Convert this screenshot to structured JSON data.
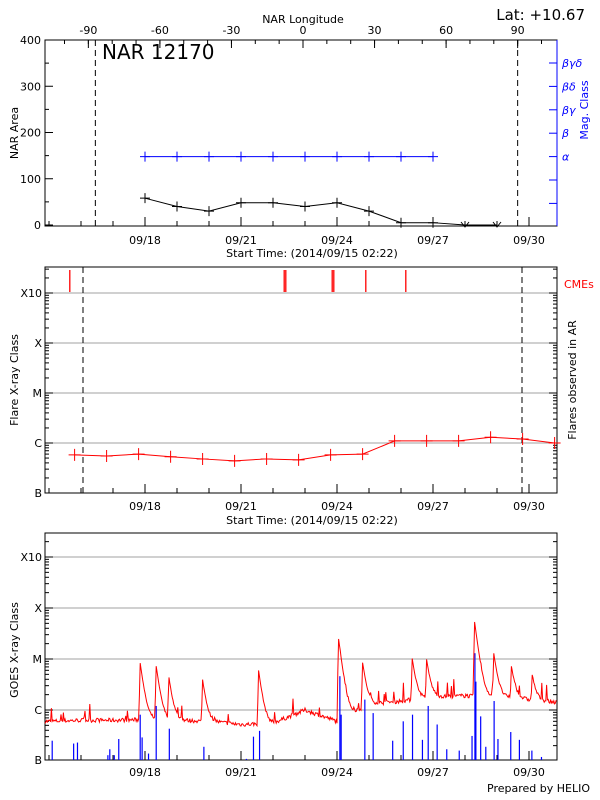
{
  "chart_data": [
    {
      "type": "line",
      "panel": "nar",
      "title": "NAR 12170",
      "top_axis_label": "NAR Longitude",
      "top_axis_ticks": [
        "-90",
        "-60",
        "-30",
        "0",
        "30",
        "60",
        "90"
      ],
      "latitude_label": "Lat: +10.67",
      "xlabel": "Start Time: (2014/09/15 02:22)",
      "x_tick_labels": [
        "09/18",
        "09/21",
        "09/24",
        "09/27",
        "09/30"
      ],
      "ylabel": "NAR Area",
      "y_ticks": [
        "0",
        "100",
        "200",
        "300",
        "400"
      ],
      "ylim": [
        0,
        400
      ],
      "y2label": "Mag. Class",
      "y2_categories": [
        "βγδ",
        "βδ",
        "βγ",
        "β",
        "α"
      ],
      "limb_longitudes": [
        -90,
        90
      ],
      "series": [
        {
          "color": "#000000",
          "days": [
            "09/18",
            "09/19",
            "09/20",
            "09/21",
            "09/22",
            "09/23",
            "09/24",
            "09/25",
            "09/26",
            "09/27",
            "09/28",
            "09/29"
          ],
          "values": [
            58,
            40,
            30,
            48,
            48,
            40,
            48,
            30,
            5,
            5,
            0,
            0
          ]
        },
        {
          "color": "#0000ff",
          "days": [
            "09/18",
            "09/19",
            "09/20",
            "09/21",
            "09/22",
            "09/23",
            "09/24",
            "09/25",
            "09/26",
            "09/27"
          ],
          "values": [
            "α",
            "α",
            "α",
            "α",
            "α",
            "α",
            "α",
            "α",
            "α",
            "α"
          ]
        }
      ]
    },
    {
      "type": "line",
      "panel": "flares",
      "xlabel": "Start Time: (2014/09/15 02:22)",
      "x_tick_labels": [
        "09/18",
        "09/21",
        "09/24",
        "09/27",
        "09/30"
      ],
      "ylabel": "Flare X-ray Class",
      "y2label": "Flares observed in AR",
      "y_ticks": [
        "B",
        "C",
        "M",
        "X",
        "X10"
      ],
      "grid": true,
      "cme_label": "CMEs",
      "cme_color": "#ff0000",
      "cme_times": [
        15.65,
        22.35,
        22.4,
        23.85,
        23.9,
        24.9,
        26.15
      ],
      "series": [
        {
          "color": "#ff0000",
          "t": [
            15.8,
            16.8,
            17.8,
            18.8,
            19.8,
            20.8,
            21.8,
            22.8,
            23.8,
            24.8,
            25.8,
            26.8,
            27.8,
            28.8,
            29.8,
            30.8
          ],
          "values": [
            "B5.8",
            "B5.5",
            "B6.0",
            "B5.3",
            "B4.8",
            "B4.4",
            "B4.8",
            "B4.6",
            "B5.8",
            "B6.0",
            "C1.1",
            "C1.1",
            "C1.1",
            "C1.3",
            "C1.2",
            "C1.0"
          ]
        }
      ]
    },
    {
      "type": "line",
      "panel": "goes",
      "x_tick_labels": [
        "09/18",
        "09/21",
        "09/24",
        "09/27",
        "09/30"
      ],
      "ylabel": "GOES X-ray Class",
      "y_ticks": [
        "B",
        "C",
        "M",
        "X",
        "X10"
      ],
      "grid": true,
      "series": [
        {
          "color": "#ff0000",
          "baseline_t": [
            15,
            16,
            17,
            18,
            19,
            20,
            21,
            22,
            23,
            24,
            25,
            26,
            27,
            28,
            29,
            30,
            31
          ],
          "baseline": [
            "B6.0",
            "B6.3",
            "B6.3",
            "B6.5",
            "B6.3",
            "B6.0",
            "B5.2",
            "B5.5",
            "C1.0",
            "B6.0",
            "C1.3",
            "C1.5",
            "C1.8",
            "C1.9",
            "C1.8",
            "C1.6",
            "C1.4"
          ],
          "peaks_t": [
            17.85,
            18.35,
            18.75,
            19.8,
            21.55,
            24.05,
            24.8,
            26.35,
            26.8,
            28.3,
            28.9,
            29.45,
            30.1
          ],
          "peaks": [
            "C7.7",
            "C6.6",
            "C3.6",
            "C3.3",
            "C5.4",
            "M2.4",
            "C7.4",
            "C8.7",
            "C7.9",
            "M5.1",
            "M1.1",
            "C5.5",
            "C3.4"
          ]
        },
        {
          "color": "#0000ff",
          "t": [
            15.1,
            15.77,
            15.89,
            16.84,
            16.9,
            17.04,
            17.18,
            17.85,
            17.91,
            18.11,
            18.35,
            18.76,
            19.84,
            21.17,
            21.39,
            21.58,
            24.09,
            24.13,
            24.87,
            25.13,
            25.74,
            26.07,
            26.36,
            26.67,
            26.85,
            27.13,
            27.43,
            27.82,
            28.22,
            28.31,
            28.34,
            28.49,
            28.65,
            28.91,
            29.03,
            29.43,
            29.7,
            30.09,
            30.39
          ],
          "values": [
            "B2.5",
            "B2.2",
            "B2.3",
            "B1.3",
            "B1.7",
            "B1.3",
            "B2.7",
            "B8.1",
            "B2.9",
            "B1.4",
            "C1.2",
            "B4.3",
            "B1.9",
            "B1.1",
            "B3.0",
            "B3.9",
            "C4.6",
            "B8.1",
            "C1.6",
            "B8.7",
            "B2.5",
            "B6.0",
            "B8.1",
            "B2.6",
            "C1.2",
            "B5.2",
            "B1.7",
            "B1.6",
            "B3.1",
            "M1.3",
            "C3.6",
            "B7.5",
            "B1.9",
            "C1.5",
            "B2.7",
            "B3.7",
            "B2.6",
            "B1.6",
            "B1.2"
          ]
        }
      ]
    }
  ],
  "footer": {
    "credit": "Prepared by HELIO"
  }
}
